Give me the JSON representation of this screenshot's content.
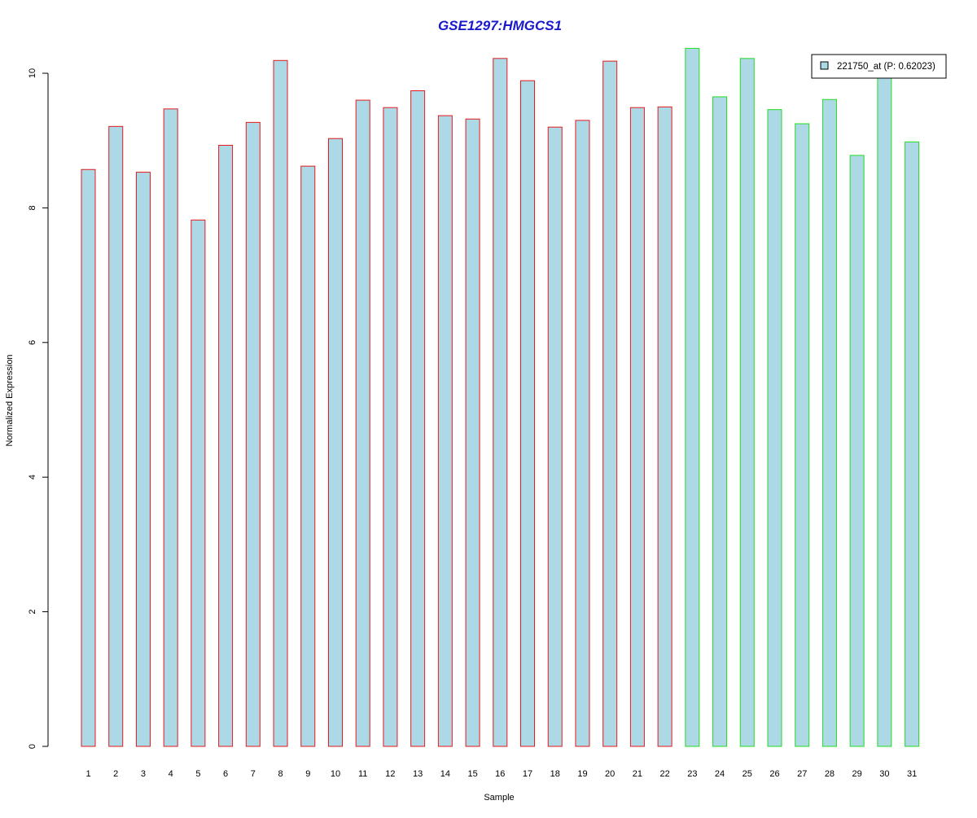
{
  "chart_data": {
    "type": "bar",
    "title": "GSE1297:HMGCS1",
    "xlabel": "Sample",
    "ylabel": "Normalized Expression",
    "ylim": [
      0,
      10.4
    ],
    "yticks": [
      0,
      2,
      4,
      6,
      8,
      10
    ],
    "categories": [
      "1",
      "2",
      "3",
      "4",
      "5",
      "6",
      "7",
      "8",
      "9",
      "10",
      "11",
      "12",
      "13",
      "14",
      "15",
      "16",
      "17",
      "18",
      "19",
      "20",
      "21",
      "22",
      "23",
      "24",
      "25",
      "26",
      "27",
      "28",
      "29",
      "30",
      "31"
    ],
    "series": [
      {
        "name": "221750_at (P: 0.62023)",
        "values": [
          8.57,
          9.21,
          8.53,
          9.47,
          7.82,
          8.93,
          9.27,
          10.19,
          8.62,
          9.03,
          9.6,
          9.49,
          9.74,
          9.37,
          9.32,
          10.22,
          9.89,
          9.2,
          9.3,
          10.18,
          9.49,
          9.5,
          10.37,
          9.65,
          10.22,
          9.46,
          9.25,
          9.61,
          8.78,
          9.99,
          8.98
        ],
        "groups": [
          "A",
          "A",
          "A",
          "A",
          "A",
          "A",
          "A",
          "A",
          "A",
          "A",
          "A",
          "A",
          "A",
          "A",
          "A",
          "A",
          "A",
          "A",
          "A",
          "A",
          "A",
          "A",
          "B",
          "B",
          "B",
          "B",
          "B",
          "B",
          "B",
          "B",
          "B"
        ]
      }
    ],
    "group_border_colors": {
      "A": "#e41a1c",
      "B": "#22dd22"
    },
    "bar_fill": "#add8e6",
    "title_color": "#1a1acc",
    "grid": false,
    "legend_position": "top-right"
  }
}
